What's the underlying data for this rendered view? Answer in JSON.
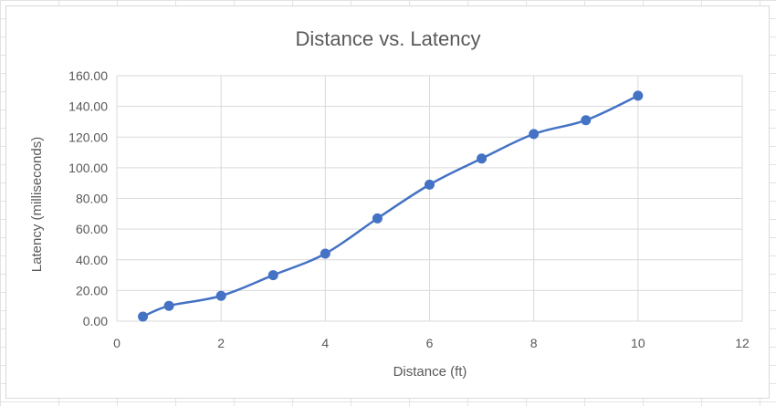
{
  "chart_data": {
    "type": "scatter",
    "title": "Distance vs. Latency",
    "xlabel": "Distance (ft)",
    "ylabel": "Latency (milliseconds)",
    "xlim": [
      0,
      12
    ],
    "ylim": [
      0,
      160
    ],
    "x_ticks": [
      "0",
      "2",
      "4",
      "6",
      "8",
      "10",
      "12"
    ],
    "y_ticks": [
      "0.00",
      "20.00",
      "40.00",
      "60.00",
      "80.00",
      "100.00",
      "120.00",
      "140.00",
      "160.00"
    ],
    "grid": true,
    "line": "smooth",
    "colors": {
      "series": "#4472C4",
      "grid": "#d9d9d9",
      "text": "#595959"
    },
    "series": [
      {
        "x": [
          0.5,
          1,
          2,
          3,
          4,
          5,
          6,
          7,
          8,
          9,
          10
        ],
        "y": [
          3,
          10,
          16.5,
          30,
          44,
          67,
          89,
          106,
          122,
          131,
          147
        ]
      }
    ]
  }
}
